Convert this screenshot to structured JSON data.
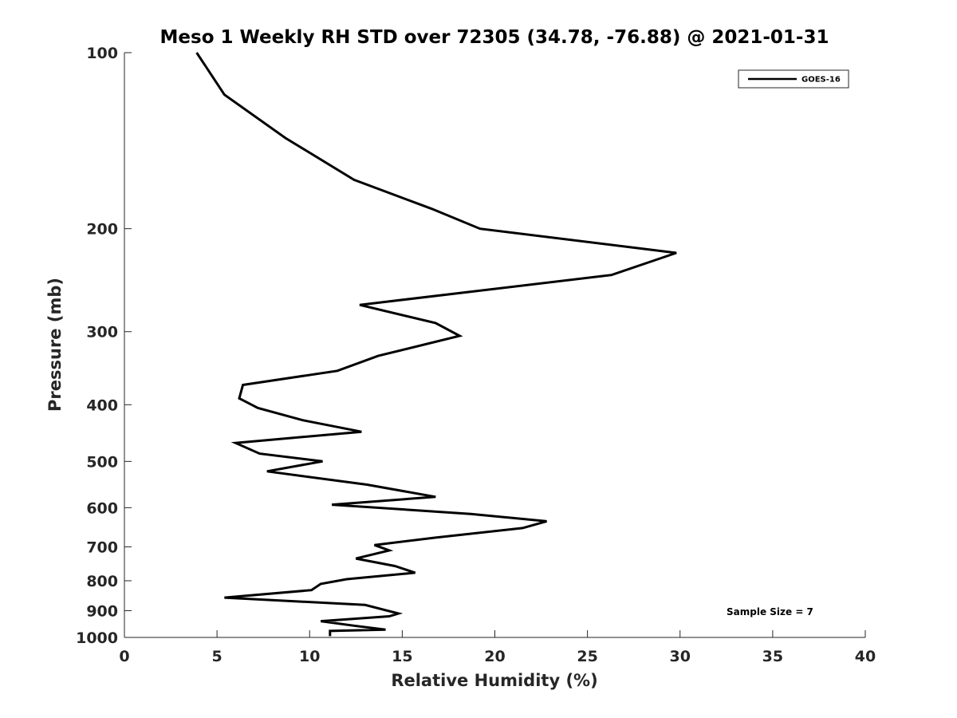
{
  "chart_data": {
    "type": "line",
    "title": "Meso 1 Weekly RH STD over 72305 (34.78, -76.88) @ 2021-01-31",
    "xlabel": "Relative Humidity (%)",
    "ylabel": "Pressure (mb)",
    "xlim": [
      0,
      40
    ],
    "ylim": [
      1000,
      100
    ],
    "y_scale": "log",
    "y_reversed": true,
    "x_ticks": [
      0,
      5,
      10,
      15,
      20,
      25,
      30,
      35,
      40
    ],
    "y_ticks": [
      100,
      200,
      300,
      400,
      500,
      600,
      700,
      800,
      900,
      1000
    ],
    "grid": false,
    "legend_position": "top-right",
    "annotation": "Sample Size = 7",
    "series": [
      {
        "name": "GOES-16",
        "color": "#000000",
        "x": [
          3.9,
          5.4,
          8.7,
          12.4,
          16.6,
          19.2,
          29.8,
          26.3,
          12.7,
          16.8,
          18.1,
          13.7,
          11.5,
          6.4,
          6.2,
          7.2,
          9.6,
          12.8,
          6.0,
          7.3,
          10.7,
          7.7,
          13.1,
          16.8,
          11.2,
          18.7,
          22.8,
          21.5,
          16.8,
          13.5,
          14.3,
          12.5,
          14.6,
          15.7,
          12.0,
          10.6,
          10.1,
          5.4,
          13.0,
          14.8,
          14.3,
          10.6,
          12.4,
          14.1,
          11.1,
          11.1
        ],
        "y": [
          100,
          118,
          140,
          165,
          185,
          200,
          220,
          240,
          270,
          290,
          305,
          330,
          350,
          370,
          390,
          405,
          425,
          445,
          465,
          485,
          500,
          520,
          548,
          575,
          593,
          615,
          633,
          650,
          675,
          695,
          710,
          733,
          755,
          775,
          795,
          810,
          830,
          855,
          880,
          910,
          920,
          938,
          955,
          970,
          975,
          995
        ]
      }
    ]
  }
}
